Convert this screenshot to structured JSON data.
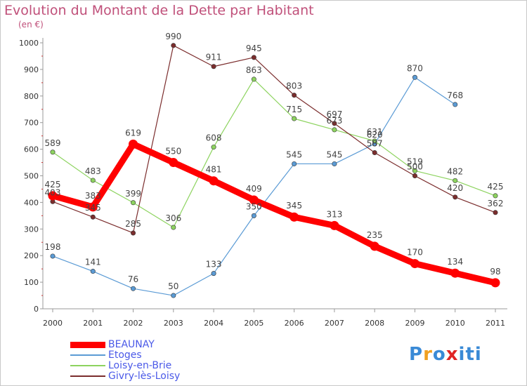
{
  "chart_data": {
    "type": "line",
    "title": "Evolution du Montant de la Dette par Habitant",
    "unit": "(en €)",
    "x": [
      "2000",
      "2001",
      "2002",
      "2003",
      "2004",
      "2005",
      "2006",
      "2007",
      "2008",
      "2009",
      "2010",
      "2011"
    ],
    "ylim": [
      0,
      1000
    ],
    "yticks": [
      "0",
      "100",
      "200",
      "300",
      "400",
      "500",
      "600",
      "700",
      "800",
      "900",
      "1000"
    ],
    "grid": false,
    "legend_position": "bottom-left",
    "series": [
      {
        "name": "BEAUNAY",
        "color": "#ff0000",
        "values": [
          425,
          383,
          619,
          550,
          481,
          409,
          345,
          313,
          235,
          170,
          134,
          98
        ],
        "labels": [
          "425",
          "383",
          "619",
          "550",
          "481",
          "409",
          "345",
          "313",
          "235",
          "170",
          "134",
          "98"
        ]
      },
      {
        "name": "Etoges",
        "color": "#5b9bd5",
        "values": [
          198,
          141,
          76,
          50,
          133,
          350,
          545,
          545,
          620,
          870,
          768,
          null
        ],
        "labels": [
          "198",
          "141",
          "76",
          "50",
          "133",
          "350",
          "545",
          "545",
          "620",
          "870",
          "768",
          ""
        ]
      },
      {
        "name": "Loisy-en-Brie",
        "color": "#8dd35f",
        "values": [
          589,
          483,
          399,
          306,
          608,
          863,
          715,
          673,
          631,
          519,
          482,
          425
        ],
        "labels": [
          "589",
          "483",
          "399",
          "306",
          "608",
          "863",
          "715",
          "673",
          "631",
          "519",
          "482",
          "425"
        ]
      },
      {
        "name": "Givry-lès-Loisy",
        "color": "#7b2d2d",
        "values": [
          403,
          345,
          285,
          990,
          911,
          945,
          803,
          697,
          587,
          500,
          420,
          362
        ],
        "labels": [
          "403",
          "345",
          "285",
          "990",
          "911",
          "945",
          "803",
          "697",
          "587",
          "500",
          "420",
          "362"
        ]
      }
    ]
  },
  "logo": {
    "letters": [
      "P",
      "r",
      "o",
      "x",
      "i",
      "t",
      "i"
    ],
    "colors": [
      "#3a8ad6",
      "#f0a020",
      "#3a8ad6",
      "#e02424",
      "#3a8ad6",
      "#3a8ad6",
      "#3a8ad6"
    ]
  }
}
